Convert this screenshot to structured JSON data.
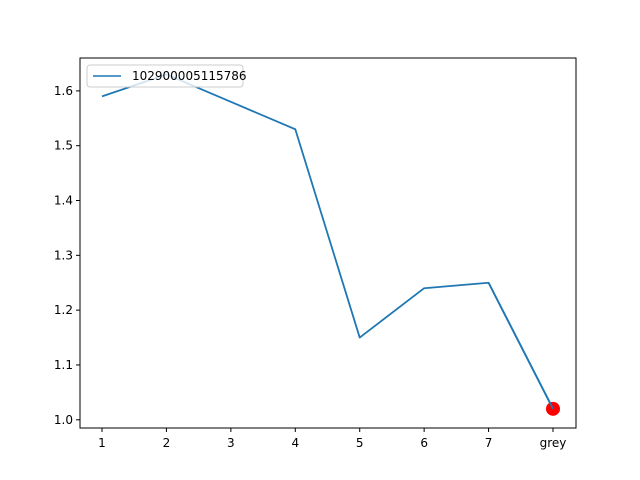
{
  "chart_data": {
    "type": "line",
    "title": "",
    "xlabel": "",
    "ylabel": "",
    "categories": [
      "1",
      "2",
      "3",
      "4",
      "5",
      "6",
      "7",
      "grey"
    ],
    "series": [
      {
        "name": "102900005115786",
        "color": "#1f77b4",
        "values": [
          1.59,
          1.63,
          1.58,
          1.53,
          1.15,
          1.24,
          1.25,
          1.02
        ]
      }
    ],
    "highlight_point": {
      "category": "grey",
      "value": 1.02,
      "color": "#ff0000"
    },
    "yticks": [
      "1.0",
      "1.1",
      "1.2",
      "1.3",
      "1.4",
      "1.5",
      "1.6"
    ],
    "ylim": [
      0.985,
      1.66
    ],
    "grid": false,
    "legend_position": "upper-left"
  }
}
